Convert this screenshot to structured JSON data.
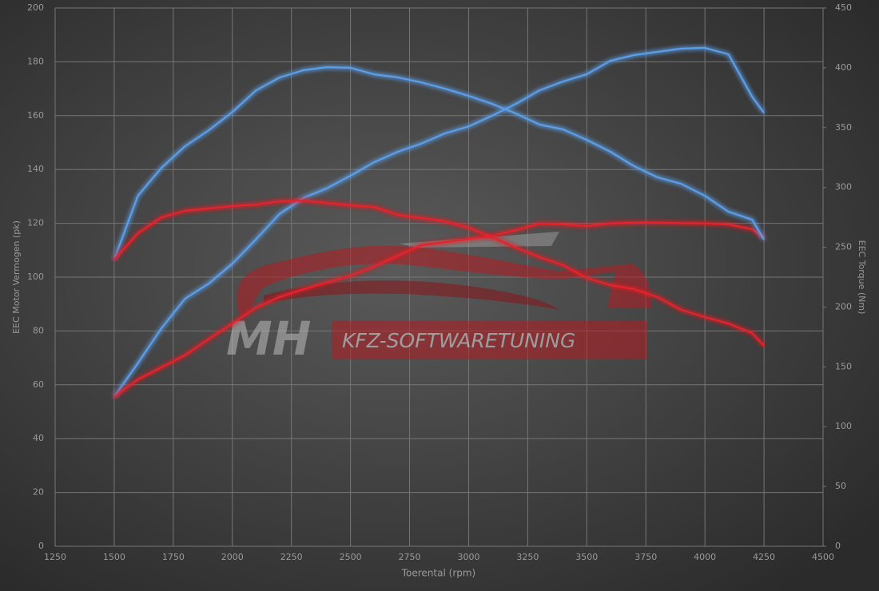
{
  "chart_data": {
    "type": "line",
    "x_label": "Toerental (rpm)",
    "y_label": "EEC Motor Vermogen (pk)",
    "y2_label": "EEC Torque (Nm)",
    "xlim": [
      1250,
      4500
    ],
    "xticks": [
      1250,
      1500,
      1750,
      2000,
      2250,
      2500,
      2750,
      3000,
      3250,
      3500,
      3750,
      4000,
      4250,
      4500
    ],
    "ylim": [
      0,
      200
    ],
    "yticks": [
      0,
      20,
      40,
      60,
      80,
      100,
      120,
      140,
      160,
      180,
      200
    ],
    "y2lim": [
      0,
      450
    ],
    "y2ticks": [
      0,
      50,
      100,
      150,
      200,
      250,
      300,
      350,
      400,
      450
    ],
    "grid": true,
    "x": [
      1500,
      1600,
      1700,
      1800,
      1900,
      2000,
      2100,
      2200,
      2300,
      2400,
      2500,
      2600,
      2700,
      2800,
      2900,
      3000,
      3100,
      3200,
      3300,
      3400,
      3500,
      3600,
      3700,
      3800,
      3900,
      4000,
      4100,
      4200,
      4250
    ],
    "series": [
      {
        "color": "#5b9ee8",
        "axis": "y",
        "values": [
          55.5,
          68,
          81,
          92,
          97.6,
          105,
          114,
          123.5,
          129.4,
          133,
          137.7,
          142.7,
          146.6,
          149.6,
          153.4,
          156,
          160,
          164.4,
          169.4,
          172.7,
          175.4,
          180.4,
          182.5,
          183.7,
          184.9,
          185.2,
          182.8,
          167,
          161
        ]
      },
      {
        "color": "#e8232c",
        "axis": "y",
        "values": [
          55.5,
          62,
          66.5,
          71,
          77,
          82.8,
          88.7,
          92.6,
          95.5,
          98,
          100.6,
          104,
          108,
          111.9,
          113,
          114.2,
          115.4,
          117.5,
          119.9,
          119.6,
          119,
          120,
          120.2,
          120.2,
          120.1,
          120,
          119.6,
          117.8,
          114.5
        ]
      },
      {
        "color": "#5b9ee8",
        "axis": "y2",
        "values": [
          239.7,
          293,
          316.4,
          334.4,
          347.8,
          363,
          381,
          391.9,
          397.9,
          400.5,
          400,
          394.5,
          392,
          387.8,
          382.5,
          376.5,
          369.8,
          361.8,
          352.5,
          348.5,
          339.8,
          329.8,
          317.8,
          308.4,
          303,
          293,
          279.7,
          273,
          256.3
        ]
      },
      {
        "color": "#e8232c",
        "axis": "y2",
        "values": [
          239.7,
          261.7,
          275,
          280.4,
          282.4,
          284.4,
          285.7,
          288.4,
          289,
          287,
          285,
          283.7,
          277,
          274.4,
          271.7,
          266.4,
          258.3,
          249.7,
          241.7,
          235,
          224.3,
          218.3,
          215,
          208.3,
          197.6,
          191.6,
          186.2,
          178.2,
          167.6
        ]
      }
    ]
  },
  "watermark": {
    "logo": "MH",
    "text": "KFZ-SOFTWARETUNING"
  }
}
